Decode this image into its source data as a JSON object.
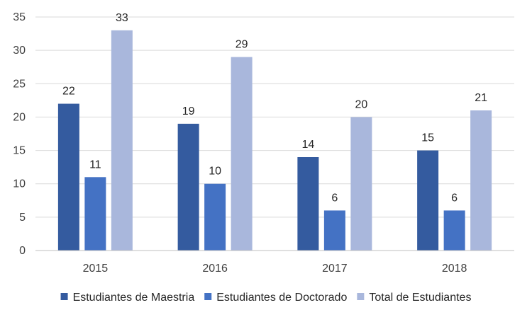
{
  "chart_data": {
    "type": "bar",
    "categories": [
      "2015",
      "2016",
      "2017",
      "2018"
    ],
    "series": [
      {
        "name": "Estudiantes de Maestria",
        "values": [
          22,
          19,
          14,
          15
        ],
        "color": "#345b9f"
      },
      {
        "name": "Estudiantes de Doctorado",
        "values": [
          11,
          10,
          6,
          6
        ],
        "color": "#4472c4"
      },
      {
        "name": "Total de Estudiantes",
        "values": [
          33,
          29,
          20,
          21
        ],
        "color": "#a9b7dc"
      }
    ],
    "ylim": [
      0,
      35
    ],
    "yticks": [
      "0",
      "5",
      "10",
      "15",
      "20",
      "25",
      "30",
      "35"
    ],
    "grid": true,
    "legend": "bottom",
    "gridline_color": "#d9d9d9",
    "axis_color": "#bfbfbf"
  }
}
